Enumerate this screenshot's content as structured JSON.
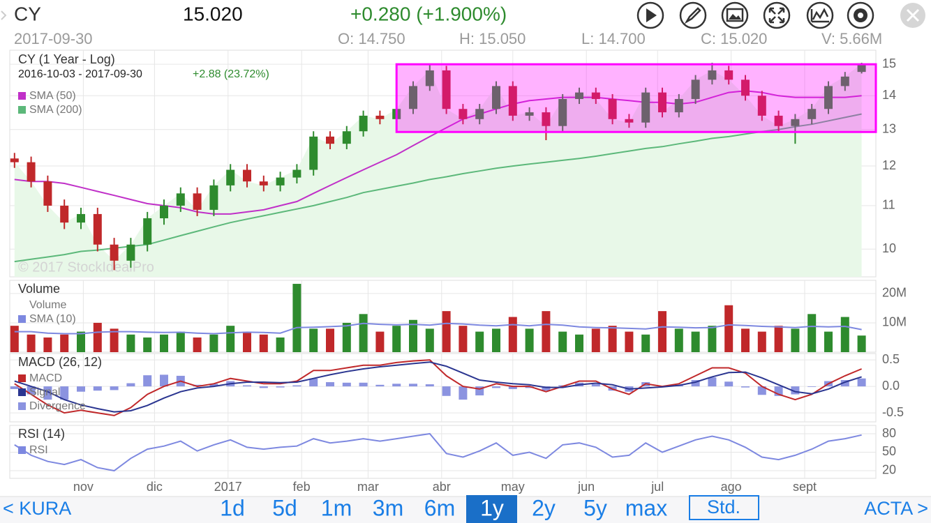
{
  "header": {
    "symbol": "CY",
    "price": "15.020",
    "change": "+0.280 (+1.900%)",
    "date": "2017-09-30",
    "open": "O: 14.750",
    "high": "H: 15.050",
    "low": "L: 14.700",
    "close": "C: 15.020",
    "volume": "V: 5.66M"
  },
  "chart_data": [
    {
      "type": "candlestick",
      "title": "CY (1 Year - Log)",
      "subtitle": "2016-10-03 - 2017-09-30",
      "change": "+2.88 (23.72%)",
      "watermark": "© 2017 StockIdealPro",
      "log_scale": true,
      "grid": true,
      "up_color": "#2e8b2e",
      "down_color": "#c0282a",
      "area_color": "#e8f8e8",
      "x": [
        "2016-10-03",
        "2016-10-10",
        "2016-10-17",
        "2016-10-24",
        "2016-10-31",
        "2016-11-07",
        "2016-11-14",
        "2016-11-21",
        "2016-11-28",
        "2016-12-05",
        "2016-12-12",
        "2016-12-19",
        "2016-12-26",
        "2017-01-02",
        "2017-01-09",
        "2017-01-16",
        "2017-01-23",
        "2017-01-30",
        "2017-02-06",
        "2017-02-13",
        "2017-02-20",
        "2017-02-27",
        "2017-03-06",
        "2017-03-13",
        "2017-03-20",
        "2017-03-27",
        "2017-04-03",
        "2017-04-10",
        "2017-04-17",
        "2017-04-24",
        "2017-05-01",
        "2017-05-08",
        "2017-05-15",
        "2017-05-22",
        "2017-05-29",
        "2017-06-05",
        "2017-06-12",
        "2017-06-19",
        "2017-06-26",
        "2017-07-03",
        "2017-07-10",
        "2017-07-17",
        "2017-07-24",
        "2017-07-31",
        "2017-08-07",
        "2017-08-14",
        "2017-08-21",
        "2017-08-28",
        "2017-09-04",
        "2017-09-11",
        "2017-09-18",
        "2017-09-25"
      ],
      "open": [
        12.2,
        12.1,
        11.6,
        11.0,
        10.6,
        10.8,
        10.1,
        9.75,
        10.1,
        10.7,
        11.0,
        11.3,
        10.9,
        11.5,
        11.9,
        11.6,
        11.5,
        11.7,
        11.9,
        12.8,
        12.6,
        12.95,
        13.4,
        13.3,
        13.6,
        14.3,
        14.8,
        13.6,
        13.3,
        13.6,
        14.3,
        13.4,
        13.5,
        13.1,
        13.9,
        14.1,
        13.9,
        13.3,
        13.2,
        14.1,
        13.5,
        13.9,
        14.5,
        14.8,
        14.5,
        14.0,
        13.4,
        13.1,
        13.3,
        13.6,
        14.3,
        14.75
      ],
      "high": [
        12.35,
        12.25,
        11.75,
        11.15,
        10.95,
        10.95,
        10.25,
        10.25,
        10.85,
        11.15,
        11.45,
        11.45,
        11.65,
        12.05,
        12.05,
        11.75,
        11.85,
        12.05,
        12.95,
        12.95,
        13.1,
        13.55,
        13.55,
        13.75,
        14.45,
        15.0,
        14.95,
        13.75,
        13.75,
        14.45,
        14.45,
        13.65,
        13.65,
        14.05,
        14.25,
        14.25,
        14.05,
        13.45,
        14.25,
        14.25,
        14.05,
        14.65,
        15.05,
        14.95,
        14.65,
        14.15,
        13.55,
        13.45,
        13.75,
        14.45,
        14.75,
        15.05
      ],
      "low": [
        11.95,
        11.45,
        10.85,
        10.45,
        10.45,
        9.95,
        9.55,
        9.6,
        9.95,
        10.55,
        10.85,
        10.75,
        10.75,
        11.35,
        11.45,
        11.35,
        11.35,
        11.55,
        11.75,
        12.45,
        12.45,
        12.8,
        13.15,
        13.15,
        13.45,
        14.15,
        13.45,
        13.15,
        13.15,
        13.45,
        13.25,
        13.25,
        12.7,
        12.95,
        13.75,
        13.75,
        13.15,
        13.05,
        13.05,
        13.35,
        13.35,
        13.75,
        14.35,
        14.35,
        13.85,
        13.25,
        12.95,
        12.6,
        13.15,
        13.45,
        14.15,
        14.7
      ],
      "close": [
        12.1,
        11.6,
        11.0,
        10.6,
        10.8,
        10.1,
        9.75,
        10.1,
        10.7,
        11.0,
        11.3,
        10.9,
        11.5,
        11.9,
        11.6,
        11.5,
        11.7,
        11.9,
        12.8,
        12.6,
        12.95,
        13.4,
        13.3,
        13.6,
        14.3,
        14.8,
        13.6,
        13.3,
        13.6,
        14.3,
        13.4,
        13.5,
        13.1,
        13.9,
        14.1,
        13.9,
        13.3,
        13.2,
        14.1,
        13.5,
        13.9,
        14.5,
        14.8,
        14.5,
        14.0,
        13.4,
        13.1,
        13.3,
        13.6,
        14.3,
        14.6,
        15.02
      ],
      "series": [
        {
          "name": "SMA (50)",
          "color": "#c030c8",
          "values": [
            11.65,
            11.6,
            11.6,
            11.55,
            11.45,
            11.35,
            11.25,
            11.15,
            11.05,
            11.0,
            10.95,
            10.85,
            10.8,
            10.8,
            10.85,
            10.9,
            11.0,
            11.1,
            11.3,
            11.5,
            11.7,
            11.9,
            12.1,
            12.3,
            12.55,
            12.8,
            13.05,
            13.3,
            13.45,
            13.6,
            13.75,
            13.85,
            13.9,
            13.95,
            13.95,
            13.95,
            13.9,
            13.85,
            13.8,
            13.8,
            13.75,
            13.8,
            13.95,
            14.1,
            14.15,
            14.1,
            14.0,
            13.95,
            13.95,
            13.95,
            13.95,
            14.0
          ]
        },
        {
          "name": "SMA (200)",
          "color": "#5cb87a",
          "values": [
            9.73,
            9.78,
            9.83,
            9.88,
            9.95,
            9.98,
            10.02,
            10.06,
            10.1,
            10.2,
            10.3,
            10.4,
            10.5,
            10.6,
            10.68,
            10.76,
            10.84,
            10.92,
            11.0,
            11.1,
            11.2,
            11.32,
            11.4,
            11.48,
            11.56,
            11.65,
            11.72,
            11.8,
            11.87,
            11.94,
            12.0,
            12.05,
            12.1,
            12.15,
            12.2,
            12.26,
            12.33,
            12.4,
            12.47,
            12.52,
            12.6,
            12.67,
            12.75,
            12.8,
            12.87,
            12.94,
            13.0,
            13.08,
            13.15,
            13.25,
            13.35,
            13.45
          ]
        }
      ],
      "box": {
        "start": "2017-03-13",
        "end": "2017-10-01",
        "low": 12.93,
        "high": 15.0,
        "color": "#ff00ff"
      },
      "ylim": [
        9.41,
        15.47
      ],
      "yticks": [
        15,
        14,
        13,
        12,
        11,
        10
      ]
    },
    {
      "type": "bar",
      "title": "Volume",
      "grid": true,
      "series": [
        {
          "name": "Volume",
          "type": "bar",
          "values": [
            9000000,
            6000000,
            5000000,
            6000000,
            7000000,
            10000000,
            8000000,
            6000000,
            5000000,
            6000000,
            7000000,
            5000000,
            6000000,
            9000000,
            7000000,
            6000000,
            5000000,
            23300000,
            8000000,
            8000000,
            10000000,
            13000000,
            7000000,
            9000000,
            11000000,
            8000000,
            14000000,
            9000000,
            7000000,
            8000000,
            12000000,
            8000000,
            14000000,
            7000000,
            6000000,
            8000000,
            9000000,
            7000000,
            6000000,
            14000000,
            8000000,
            7000000,
            9000000,
            16000000,
            8000000,
            7000000,
            9000000,
            8000000,
            13000000,
            7000000,
            12000000,
            5660000
          ]
        },
        {
          "name": "SMA (10)",
          "type": "line",
          "color": "#7d88e0",
          "values": [
            7000000,
            7000000,
            6500000,
            6300000,
            6300000,
            6800000,
            7000000,
            7000000,
            6800000,
            6700000,
            6800000,
            6500000,
            6300000,
            6600000,
            6800000,
            6700000,
            6500000,
            8400000,
            8500000,
            8700000,
            9000000,
            9800000,
            9500000,
            9300000,
            9500000,
            9200000,
            9800000,
            9600000,
            9200000,
            9000000,
            9400000,
            9000000,
            9500000,
            9200000,
            8600000,
            8400000,
            8300000,
            8100000,
            7900000,
            8600000,
            8500000,
            8300000,
            8400000,
            9300000,
            9100000,
            8800000,
            8600000,
            8400000,
            8800000,
            8600000,
            8800000,
            7700000
          ]
        }
      ],
      "ylim": [
        0,
        24500000
      ],
      "yticks": [
        {
          "value": 20000000,
          "label": "20M"
        },
        {
          "value": 10000000,
          "label": "10M"
        }
      ]
    },
    {
      "type": "line",
      "title": "MACD (26, 12)",
      "grid": true,
      "series": [
        {
          "name": "MACD",
          "type": "line",
          "color": "#c0282a",
          "values": [
            0.05,
            -0.15,
            -0.35,
            -0.5,
            -0.45,
            -0.5,
            -0.55,
            -0.4,
            -0.15,
            0.0,
            0.1,
            0.0,
            0.05,
            0.15,
            0.1,
            0.05,
            0.05,
            0.1,
            0.3,
            0.3,
            0.35,
            0.4,
            0.4,
            0.45,
            0.48,
            0.5,
            0.2,
            0.0,
            -0.05,
            0.05,
            0.0,
            0.0,
            -0.1,
            0.0,
            0.1,
            0.1,
            -0.05,
            -0.15,
            0.05,
            0.0,
            0.05,
            0.2,
            0.35,
            0.35,
            0.25,
            0.0,
            -0.15,
            -0.25,
            -0.15,
            0.05,
            0.2,
            0.33
          ]
        },
        {
          "name": "Signal",
          "type": "line",
          "color": "#2a3590",
          "values": [
            0.1,
            0.0,
            -0.1,
            -0.25,
            -0.35,
            -0.42,
            -0.48,
            -0.46,
            -0.36,
            -0.22,
            -0.1,
            -0.03,
            0.0,
            0.05,
            0.08,
            0.08,
            0.07,
            0.08,
            0.15,
            0.22,
            0.28,
            0.33,
            0.37,
            0.4,
            0.43,
            0.46,
            0.38,
            0.25,
            0.12,
            0.08,
            0.05,
            0.03,
            -0.02,
            -0.02,
            0.03,
            0.06,
            0.03,
            -0.05,
            -0.03,
            -0.01,
            0.02,
            0.08,
            0.18,
            0.26,
            0.27,
            0.16,
            0.03,
            -0.1,
            -0.14,
            -0.05,
            0.08,
            0.18
          ]
        },
        {
          "name": "Divergence",
          "type": "bar",
          "color": "#8b93e0",
          "values": [
            -0.05,
            -0.15,
            -0.25,
            -0.25,
            -0.1,
            -0.08,
            -0.07,
            0.06,
            0.21,
            0.22,
            0.2,
            0.03,
            0.05,
            0.1,
            0.02,
            -0.03,
            -0.02,
            0.02,
            0.15,
            0.08,
            0.07,
            0.07,
            0.03,
            0.05,
            0.05,
            0.04,
            -0.18,
            -0.25,
            -0.17,
            -0.03,
            -0.05,
            -0.03,
            -0.08,
            0.02,
            0.07,
            0.04,
            -0.08,
            -0.1,
            0.08,
            0.01,
            0.03,
            0.12,
            0.17,
            0.09,
            -0.02,
            -0.16,
            -0.18,
            -0.15,
            -0.01,
            0.1,
            0.12,
            0.15
          ]
        }
      ],
      "ylim": [
        -0.67,
        0.62
      ],
      "yticks": [
        0.5,
        {
          "value": 0,
          "label": "0.0"
        },
        -0.5
      ]
    },
    {
      "type": "line",
      "title": "RSI (14)",
      "grid": true,
      "series": [
        {
          "name": "RSI",
          "type": "line",
          "color": "#7d88e0",
          "values": [
            62,
            45,
            35,
            30,
            38,
            25,
            20,
            40,
            55,
            60,
            68,
            52,
            62,
            70,
            58,
            55,
            58,
            60,
            72,
            65,
            68,
            72,
            68,
            72,
            76,
            80,
            48,
            42,
            52,
            65,
            45,
            50,
            40,
            62,
            65,
            58,
            42,
            45,
            65,
            50,
            60,
            70,
            76,
            70,
            58,
            42,
            38,
            45,
            55,
            68,
            72,
            78
          ]
        }
      ],
      "ylim": [
        7.5,
        93.6
      ],
      "yticks": [
        80,
        50,
        20
      ],
      "xlim": [
        "2016-10-01",
        "2017-10-01"
      ],
      "xticks": [
        {
          "value": "2016-11-01",
          "label": "nov"
        },
        {
          "value": "2016-12-01",
          "label": "dic"
        },
        {
          "value": "2017-01-01",
          "label": "2017"
        },
        {
          "value": "2017-02-01",
          "label": "feb"
        },
        {
          "value": "2017-03-01",
          "label": "mar"
        },
        {
          "value": "2017-04-01",
          "label": "abr"
        },
        {
          "value": "2017-05-01",
          "label": "may"
        },
        {
          "value": "2017-06-01",
          "label": "jun"
        },
        {
          "value": "2017-07-01",
          "label": "jul"
        },
        {
          "value": "2017-08-01",
          "label": "ago"
        },
        {
          "value": "2017-09-01",
          "label": "sept"
        }
      ]
    }
  ],
  "footer": {
    "previous": "< KURA",
    "periods": [
      "1d",
      "5d",
      "1m",
      "3m",
      "6m",
      "1y",
      "2y",
      "5y",
      "max"
    ],
    "style": "Std.",
    "next": "ACTA >"
  }
}
